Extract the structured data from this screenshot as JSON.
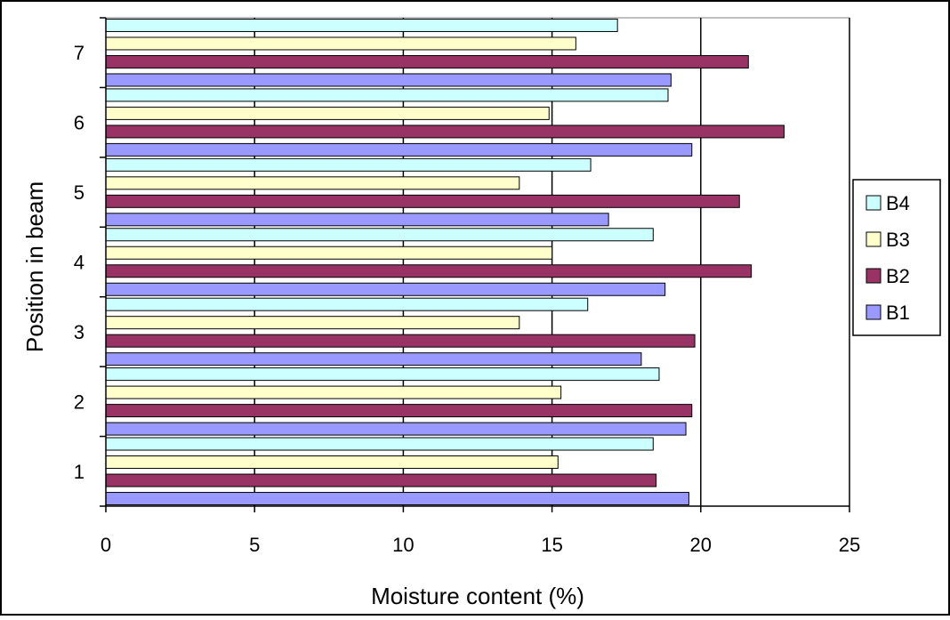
{
  "chart_data": {
    "type": "bar",
    "orientation": "horizontal",
    "categories": [
      "1",
      "2",
      "3",
      "4",
      "5",
      "6",
      "7"
    ],
    "series": [
      {
        "name": "B1",
        "color": "#9999ff",
        "values": [
          19.6,
          19.5,
          18.0,
          18.8,
          16.9,
          19.7,
          19.0
        ]
      },
      {
        "name": "B2",
        "color": "#993366",
        "values": [
          18.5,
          19.7,
          19.8,
          21.7,
          21.3,
          22.8,
          21.6
        ]
      },
      {
        "name": "B3",
        "color": "#ffffcc",
        "values": [
          15.2,
          15.3,
          13.9,
          15.0,
          13.9,
          14.9,
          15.8
        ]
      },
      {
        "name": "B4",
        "color": "#ccffff",
        "values": [
          18.4,
          18.6,
          16.2,
          18.4,
          16.3,
          18.9,
          17.2
        ]
      }
    ],
    "xlabel": "Moisture content (%)",
    "ylabel": "Position in beam",
    "xlim": [
      0,
      25
    ],
    "xticks": [
      "0",
      "5",
      "10",
      "15",
      "20",
      "25"
    ],
    "grid": "vertical",
    "legend_position": "right",
    "legend_order": [
      "B4",
      "B3",
      "B2",
      "B1"
    ]
  }
}
